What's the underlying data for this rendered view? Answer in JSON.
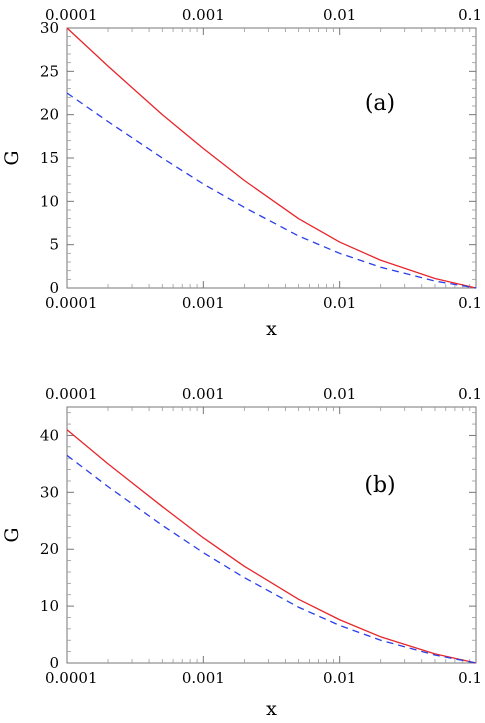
{
  "chart_data": [
    {
      "type": "line",
      "panel_label": "(a)",
      "xlabel": "x",
      "ylabel": "G",
      "x_scale": "log",
      "xlim": [
        0.0001,
        0.1
      ],
      "ylim": [
        0,
        30
      ],
      "x_ticks": [
        0.0001,
        0.001,
        0.01,
        0.1
      ],
      "x_tick_labels": [
        "0.0001",
        "0.001",
        "0.01",
        "0.1"
      ],
      "top_tick_labels": [
        "0.0001",
        "0.001",
        "0.01",
        "0.1"
      ],
      "y_ticks": [
        0,
        5,
        10,
        15,
        20,
        25,
        30
      ],
      "y_tick_labels": [
        "0",
        "5",
        "10",
        "15",
        "20",
        "25",
        "30"
      ],
      "grid": false,
      "series": [
        {
          "style": "solid",
          "color": "#e8262b",
          "x": [
            0.0001,
            0.0002,
            0.0005,
            0.001,
            0.002,
            0.005,
            0.01,
            0.02,
            0.05,
            0.1
          ],
          "y": [
            30,
            25.6,
            20.0,
            16.1,
            12.4,
            8.0,
            5.3,
            3.2,
            1.1,
            0
          ]
        },
        {
          "style": "dashed",
          "color": "#2b3ee8",
          "x": [
            0.0001,
            0.0002,
            0.0005,
            0.001,
            0.002,
            0.005,
            0.01,
            0.02,
            0.05,
            0.1
          ],
          "y": [
            22.5,
            19.2,
            15.0,
            12.0,
            9.3,
            6.0,
            4.0,
            2.4,
            0.8,
            0
          ]
        }
      ]
    },
    {
      "type": "line",
      "panel_label": "(b)",
      "xlabel": "x",
      "ylabel": "G",
      "x_scale": "log",
      "xlim": [
        0.0001,
        0.1
      ],
      "ylim": [
        0,
        45
      ],
      "x_ticks": [
        0.0001,
        0.001,
        0.01,
        0.1
      ],
      "x_tick_labels": [
        "0.0001",
        "0.001",
        "0.01",
        "0.1"
      ],
      "top_tick_labels": [
        "0.0001",
        "0.001",
        "0.01",
        "0.1"
      ],
      "y_ticks": [
        0,
        10,
        20,
        30,
        40
      ],
      "y_tick_labels": [
        "0",
        "10",
        "20",
        "30",
        "40"
      ],
      "grid": false,
      "series": [
        {
          "style": "solid",
          "color": "#e8262b",
          "x": [
            0.0001,
            0.0002,
            0.0005,
            0.001,
            0.002,
            0.005,
            0.01,
            0.02,
            0.05,
            0.1
          ],
          "y": [
            41,
            35.0,
            27.5,
            22.0,
            17.0,
            11.2,
            7.6,
            4.6,
            1.6,
            0
          ]
        },
        {
          "style": "dashed",
          "color": "#2b3ee8",
          "x": [
            0.0001,
            0.0002,
            0.0005,
            0.001,
            0.002,
            0.005,
            0.01,
            0.02,
            0.05,
            0.1
          ],
          "y": [
            36.5,
            31.0,
            24.2,
            19.4,
            15.0,
            9.8,
            6.6,
            4.0,
            1.4,
            0
          ]
        }
      ]
    }
  ]
}
